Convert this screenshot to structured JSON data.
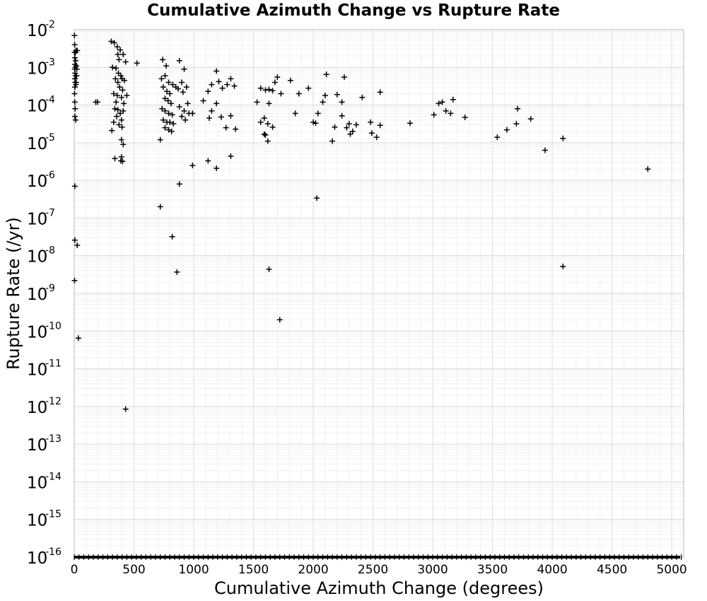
{
  "chart_data": {
    "type": "scatter",
    "title": "Cumulative Azimuth Change vs Rupture Rate",
    "xlabel": "Cumulative Azimuth Change (degrees)",
    "ylabel": "Rupture Rate (/yr)",
    "xlim": [
      0,
      5100
    ],
    "ylim_exponent": [
      -16,
      -2
    ],
    "y_scale": "log",
    "grid": true,
    "marker": "plus",
    "x_ticks": [
      0,
      500,
      1000,
      1500,
      2000,
      2500,
      3000,
      3500,
      4000,
      4500,
      5000
    ],
    "y_ticks": [
      {
        "base": "10",
        "exp": "-2"
      },
      {
        "base": "10",
        "exp": "-3"
      },
      {
        "base": "10",
        "exp": "-4"
      },
      {
        "base": "10",
        "exp": "-5"
      },
      {
        "base": "10",
        "exp": "-6"
      },
      {
        "base": "10",
        "exp": "-7"
      },
      {
        "base": "10",
        "exp": "-8"
      },
      {
        "base": "10",
        "exp": "-9"
      },
      {
        "base": "10",
        "exp": "-10"
      },
      {
        "base": "10",
        "exp": "-11"
      },
      {
        "base": "10",
        "exp": "-12"
      },
      {
        "base": "10",
        "exp": "-13"
      },
      {
        "base": "10",
        "exp": "-14"
      },
      {
        "base": "10",
        "exp": "-15"
      },
      {
        "base": "10",
        "exp": "-16"
      }
    ],
    "points": [
      [
        2,
        0.007
      ],
      [
        4,
        0.004
      ],
      [
        3,
        0.0025
      ],
      [
        5,
        0.0018
      ],
      [
        6,
        0.0012
      ],
      [
        4,
        0.0009
      ],
      [
        7,
        0.0007
      ],
      [
        5,
        0.0005
      ],
      [
        8,
        0.0004
      ],
      [
        6,
        0.0003
      ],
      [
        10,
        0.0025
      ],
      [
        12,
        0.0015
      ],
      [
        9,
        0.001
      ],
      [
        11,
        0.0006
      ],
      [
        14,
        0.00035
      ],
      [
        3,
        0.0002
      ],
      [
        5,
        0.00012
      ],
      [
        8,
        8e-05
      ],
      [
        6,
        5e-05
      ],
      [
        12,
        4e-05
      ],
      [
        15,
        0.0028
      ],
      [
        18,
        0.0011
      ],
      [
        20,
        0.0006
      ],
      [
        16,
        0.0004
      ],
      [
        25,
        0.0028
      ],
      [
        22,
        0.0009
      ],
      [
        5,
        7e-07
      ],
      [
        5,
        2.6e-08
      ],
      [
        25,
        1.9e-08
      ],
      [
        3,
        2.2e-09
      ],
      [
        35,
        6.5e-11
      ],
      [
        180,
        0.00012
      ],
      [
        195,
        0.00012
      ],
      [
        310,
        0.0049
      ],
      [
        335,
        0.0045
      ],
      [
        360,
        0.0035
      ],
      [
        365,
        0.0022
      ],
      [
        385,
        0.0029
      ],
      [
        410,
        0.0022
      ],
      [
        430,
        0.0014
      ],
      [
        375,
        0.0016
      ],
      [
        320,
        0.001
      ],
      [
        350,
        0.00095
      ],
      [
        370,
        0.0007
      ],
      [
        390,
        0.0006
      ],
      [
        345,
        0.0005
      ],
      [
        400,
        0.0005
      ],
      [
        420,
        0.00045
      ],
      [
        365,
        0.0004
      ],
      [
        380,
        0.0003
      ],
      [
        405,
        0.00025
      ],
      [
        330,
        0.0002
      ],
      [
        360,
        0.00018
      ],
      [
        395,
        0.00016
      ],
      [
        440,
        0.00018
      ],
      [
        350,
        0.00012
      ],
      [
        415,
        0.00011
      ],
      [
        340,
        8e-05
      ],
      [
        365,
        7.5e-05
      ],
      [
        385,
        6e-05
      ],
      [
        410,
        7e-05
      ],
      [
        355,
        5e-05
      ],
      [
        395,
        4e-05
      ],
      [
        330,
        3.5e-05
      ],
      [
        375,
        3e-05
      ],
      [
        400,
        2.6e-05
      ],
      [
        315,
        2.1e-05
      ],
      [
        395,
        1.2e-05
      ],
      [
        410,
        9e-06
      ],
      [
        340,
        3.8e-06
      ],
      [
        390,
        3.3e-06
      ],
      [
        405,
        3.2e-06
      ],
      [
        395,
        4.2e-06
      ],
      [
        430,
        8.5e-13
      ],
      [
        525,
        0.0013
      ],
      [
        740,
        0.0016
      ],
      [
        770,
        0.0011
      ],
      [
        730,
        0.0005
      ],
      [
        760,
        0.0006
      ],
      [
        790,
        0.0004
      ],
      [
        745,
        0.0003
      ],
      [
        775,
        0.00023
      ],
      [
        800,
        0.0002
      ],
      [
        825,
        0.00035
      ],
      [
        850,
        0.0003
      ],
      [
        760,
        0.00015
      ],
      [
        785,
        0.00013
      ],
      [
        810,
        0.00011
      ],
      [
        735,
        8e-05
      ],
      [
        760,
        7e-05
      ],
      [
        790,
        6e-05
      ],
      [
        820,
        5.5e-05
      ],
      [
        745,
        4e-05
      ],
      [
        775,
        3.5e-05
      ],
      [
        800,
        3.5e-05
      ],
      [
        830,
        3.2e-05
      ],
      [
        760,
        2.5e-05
      ],
      [
        790,
        2.2e-05
      ],
      [
        815,
        2e-05
      ],
      [
        720,
        1.2e-05
      ],
      [
        880,
        0.0015
      ],
      [
        920,
        0.0009
      ],
      [
        900,
        0.0004
      ],
      [
        940,
        0.0003
      ],
      [
        870,
        0.00027
      ],
      [
        910,
        0.00022
      ],
      [
        950,
        0.00011
      ],
      [
        880,
        9e-05
      ],
      [
        920,
        7e-05
      ],
      [
        960,
        6e-05
      ],
      [
        990,
        6e-05
      ],
      [
        900,
        5e-05
      ],
      [
        930,
        4e-05
      ],
      [
        990,
        2.5e-06
      ],
      [
        880,
        8e-07
      ],
      [
        720,
        2e-07
      ],
      [
        820,
        3.2e-08
      ],
      [
        860,
        3.7e-09
      ],
      [
        1080,
        0.00013
      ],
      [
        1120,
        0.00023
      ],
      [
        1150,
        0.00035
      ],
      [
        1190,
        0.0008
      ],
      [
        1210,
        0.00042
      ],
      [
        1240,
        0.00028
      ],
      [
        1280,
        0.00035
      ],
      [
        1310,
        0.0005
      ],
      [
        1340,
        0.00032
      ],
      [
        1150,
        7e-05
      ],
      [
        1190,
        0.00011
      ],
      [
        1230,
        4.8e-05
      ],
      [
        1270,
        2.5e-05
      ],
      [
        1310,
        5.2e-05
      ],
      [
        1350,
        2.3e-05
      ],
      [
        1130,
        4.5e-05
      ],
      [
        1120,
        3.3e-06
      ],
      [
        1190,
        2.1e-06
      ],
      [
        1310,
        4.4e-06
      ],
      [
        1530,
        0.00012
      ],
      [
        1560,
        0.00028
      ],
      [
        1600,
        0.00025
      ],
      [
        1630,
        0.00026
      ],
      [
        1660,
        0.00024
      ],
      [
        1700,
        0.00055
      ],
      [
        1680,
        0.0004
      ],
      [
        1560,
        3.5e-05
      ],
      [
        1590,
        4.5e-05
      ],
      [
        1620,
        3.2e-05
      ],
      [
        1660,
        2.6e-05
      ],
      [
        1600,
        1.6e-05
      ],
      [
        1620,
        1.1e-05
      ],
      [
        1630,
        0.00011
      ],
      [
        1590,
        1.7e-05
      ],
      [
        1730,
        0.0002
      ],
      [
        1810,
        0.00045
      ],
      [
        1850,
        6e-05
      ],
      [
        1880,
        0.0002
      ],
      [
        1960,
        0.00028
      ],
      [
        2000,
        3.5e-05
      ],
      [
        2040,
        6e-05
      ],
      [
        2080,
        0.00012
      ],
      [
        2110,
        0.00065
      ],
      [
        2100,
        0.00018
      ],
      [
        2160,
        1.1e-05
      ],
      [
        2180,
        2.6e-05
      ],
      [
        2200,
        0.00019
      ],
      [
        2240,
        5.2e-05
      ],
      [
        2260,
        0.00055
      ],
      [
        2280,
        2.5e-05
      ],
      [
        2300,
        3.2e-05
      ],
      [
        2310,
        1.7e-05
      ],
      [
        2330,
        2e-05
      ],
      [
        2360,
        3e-05
      ],
      [
        2410,
        0.00016
      ],
      [
        2480,
        3.5e-05
      ],
      [
        2490,
        1.8e-05
      ],
      [
        2530,
        1.4e-05
      ],
      [
        2560,
        2.9e-05
      ],
      [
        2560,
        0.00022
      ],
      [
        2240,
        0.00012
      ],
      [
        2020,
        3.3e-05
      ],
      [
        1630,
        4.4e-09
      ],
      [
        1720,
        2e-10
      ],
      [
        2030,
        3.4e-07
      ],
      [
        2810,
        3.3e-05
      ],
      [
        3010,
        5.5e-05
      ],
      [
        3050,
        0.00011
      ],
      [
        3080,
        0.00012
      ],
      [
        3110,
        7e-05
      ],
      [
        3150,
        6e-05
      ],
      [
        3170,
        0.00014
      ],
      [
        3270,
        4.7e-05
      ],
      [
        3540,
        1.4e-05
      ],
      [
        3620,
        2.2e-05
      ],
      [
        3700,
        3.2e-05
      ],
      [
        3710,
        8e-05
      ],
      [
        3820,
        4.3e-05
      ],
      [
        3940,
        6.3e-06
      ],
      [
        4090,
        1.3e-05
      ],
      [
        4090,
        5.2e-09
      ],
      [
        4800,
        2e-06
      ]
    ],
    "floor_strip_note": "dense row of points at 10^-16 spanning the full x range"
  }
}
